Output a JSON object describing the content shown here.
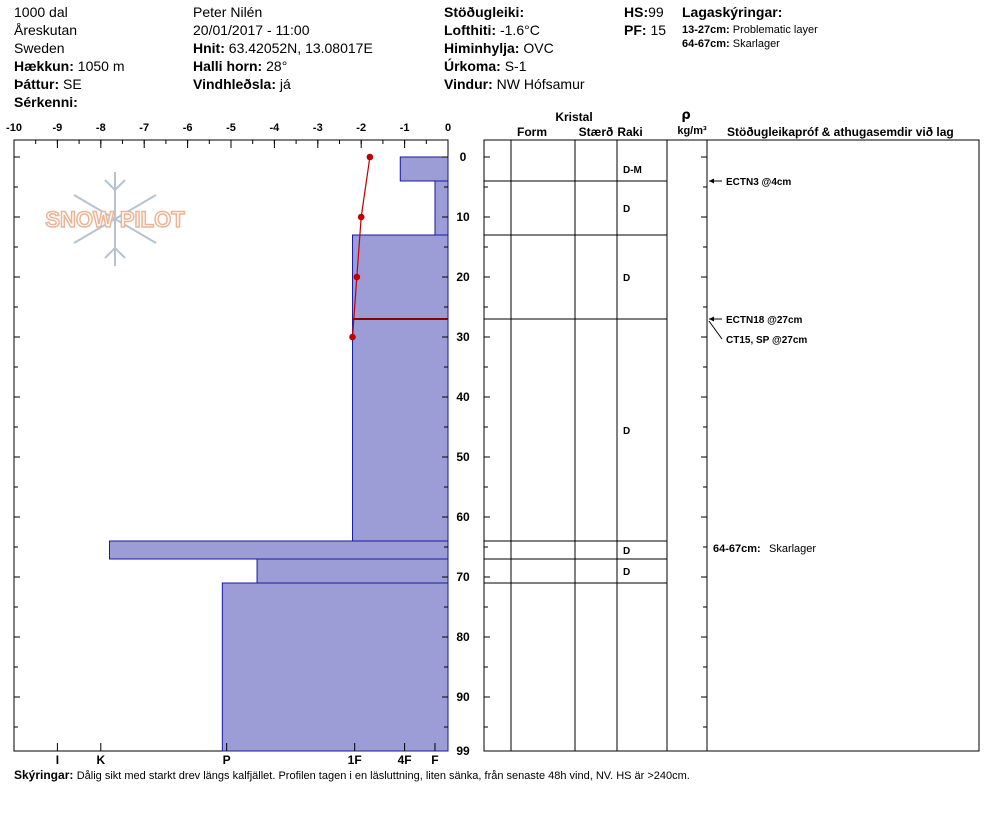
{
  "header": {
    "col1": {
      "location": "1000 dal",
      "area": "Åreskutan",
      "country": "Sweden",
      "elevation_label": "Hækkun:",
      "elevation_value": "1050 m",
      "aspect_label": "Þáttur:",
      "aspect_value": "SE",
      "features_label": "Sérkenni:"
    },
    "col2": {
      "observer": "Peter Nilén",
      "datetime": "20/01/2017 - 11:00",
      "coords_label": "Hnit:",
      "coords_value": "63.42052N, 13.08017E",
      "slope_label": "Halli horn:",
      "slope_value": "28°",
      "wind_loading_label": "Vindhleðsla:",
      "wind_loading_value": "já"
    },
    "col3": {
      "stability_label": "Stöðugleiki:",
      "air_temp_label": "Lofthiti:",
      "air_temp_value": "-1.6°C",
      "sky_label": "Himinhylja:",
      "sky_value": "OVC",
      "precip_label": "Úrkoma:",
      "precip_value": "S-1",
      "wind_label": "Vindur:",
      "wind_value": "NW Hófsamur"
    },
    "col4": {
      "hs_label": "HS:",
      "hs_value": "99",
      "pf_label": "PF:",
      "pf_value": "15"
    },
    "layer_notes": {
      "title": "Lagaskýringar:",
      "items": [
        {
          "range": "13-27cm:",
          "text": "Problematic layer"
        },
        {
          "range": "64-67cm:",
          "text": "Skarlager"
        }
      ]
    }
  },
  "columns": {
    "kristal": "Kristal",
    "form": "Form",
    "size": "Stærð",
    "moisture": "Raki",
    "density_symbol": "ρ",
    "density_unit": "kg/m³",
    "tests": "Stöðugleikapróf & athugasemdir við lag"
  },
  "watermark": "SNOW PILOT",
  "comments_label": "Skýringar:",
  "comments_text": "Dålig sikt med starkt drev längs kalfjället. Profilen tagen i en läsluttning, liten sänka, från senaste 48h vind, NV. HS är >240cm.",
  "chart_data": {
    "type": "bar",
    "temp_axis": {
      "ticks": [
        "-10",
        "-9",
        "-8",
        "-7",
        "-6",
        "-5",
        "-4",
        "-3",
        "-2",
        "-1",
        "0"
      ],
      "range": [
        -10,
        0
      ]
    },
    "depth_axis": {
      "ticks": [
        "0",
        "10",
        "20",
        "30",
        "40",
        "50",
        "60",
        "70",
        "80",
        "90",
        "99"
      ],
      "range": [
        0,
        99
      ]
    },
    "hardness_axis": {
      "ticks": [
        "I",
        "K",
        "P",
        "1F",
        "4F",
        "F"
      ],
      "values": [
        9,
        8,
        5.1,
        2.15,
        1,
        0.3
      ]
    },
    "hardness_layers": [
      {
        "top": 0,
        "bottom": 4,
        "temp_extent": -1.1
      },
      {
        "top": 4,
        "bottom": 13,
        "temp_extent": -0.3
      },
      {
        "top": 13,
        "bottom": 27,
        "temp_extent": -2.2
      },
      {
        "top": 27,
        "bottom": 64,
        "temp_extent": -2.2
      },
      {
        "top": 64,
        "bottom": 67,
        "temp_extent": -7.8
      },
      {
        "top": 67,
        "bottom": 71,
        "temp_extent": -4.4
      },
      {
        "top": 71,
        "bottom": 99,
        "temp_extent": -5.2
      }
    ],
    "temperature_profile": [
      {
        "depth": 0,
        "temp": -1.8
      },
      {
        "depth": 10,
        "temp": -2.0
      },
      {
        "depth": 20,
        "temp": -2.1
      },
      {
        "depth": 30,
        "temp": -2.2
      }
    ],
    "critical_layer_depth": 27,
    "layer_boundaries": [
      4,
      13,
      27,
      64,
      67,
      71
    ],
    "moisture": [
      {
        "top": 0,
        "bottom": 4,
        "value": "D-M"
      },
      {
        "top": 4,
        "bottom": 13,
        "value": "D"
      },
      {
        "top": 13,
        "bottom": 27,
        "value": "D"
      },
      {
        "top": 27,
        "bottom": 64,
        "value": "D"
      },
      {
        "top": 64,
        "bottom": 67,
        "value": "D"
      },
      {
        "top": 67,
        "bottom": 71,
        "value": "D"
      }
    ],
    "stability_tests": [
      {
        "depth": 4,
        "label": "ECTN3 @4cm"
      },
      {
        "depth": 27,
        "label": "ECTN18 @27cm"
      },
      {
        "depth": 27,
        "label": "CT15, SP @27cm"
      }
    ],
    "layer_comment": {
      "depth": 64,
      "range": "64-67cm:",
      "text": "Skarlager"
    },
    "colors": {
      "bar_fill": "#9c9cd6",
      "bar_stroke": "#1a1aa0",
      "temperature": "#c00000",
      "critical_layer": "#8b0000"
    }
  }
}
